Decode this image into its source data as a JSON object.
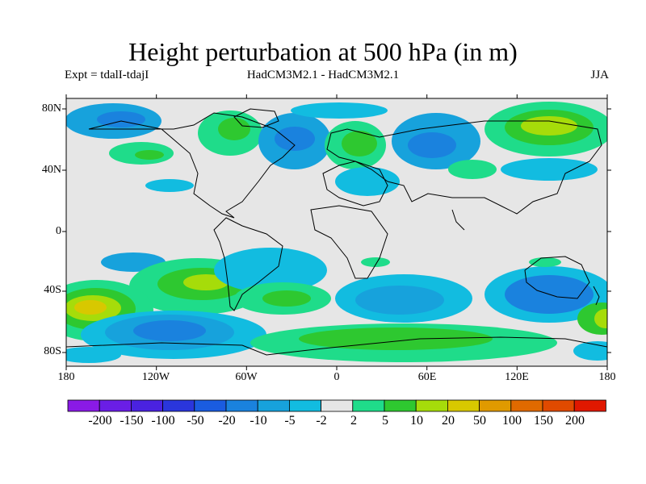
{
  "figure": {
    "title": "Height perturbation at 500 hPa (in m)",
    "experiment": "Expt = tdalI-tdajI",
    "models": "HadCM3M2.1 - HadCM3M2.1",
    "season": "JJA"
  },
  "axes": {
    "lat_labels": [
      "80N",
      "40N",
      "0",
      "40S",
      "80S"
    ],
    "lon_labels": [
      "180",
      "120W",
      "60W",
      "0",
      "60E",
      "120E",
      "180"
    ]
  },
  "colorbar": {
    "levels": [
      "-200",
      "-150",
      "-100",
      "-50",
      "-20",
      "-10",
      "-5",
      "-2",
      "2",
      "5",
      "10",
      "20",
      "50",
      "100",
      "150",
      "200"
    ],
    "colors": [
      "#8a1ae6",
      "#6a1ee6",
      "#4a22e0",
      "#2a36dc",
      "#1a5ce0",
      "#1a82de",
      "#17a2dc",
      "#12bce0",
      "#e6e6e6",
      "#1fdc8a",
      "#2ec830",
      "#a6dc0a",
      "#d8c800",
      "#e09a00",
      "#e06a00",
      "#e04a00",
      "#e01800"
    ]
  },
  "map_colors": {
    "neutral": "#e6e6e6",
    "neg_light": "#12bce0",
    "neg_mid": "#17a2dc",
    "neg_strong": "#1a82de",
    "pos_light": "#1fdc8a",
    "pos_mid": "#2ec830",
    "pos_strong": "#a6dc0a",
    "pos_peak": "#d8c800"
  }
}
